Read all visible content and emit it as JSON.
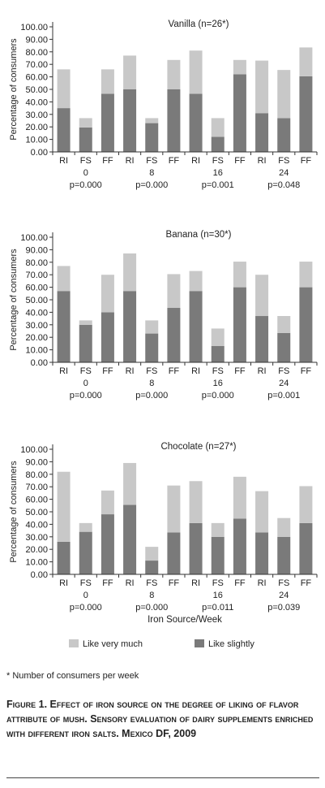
{
  "colors": {
    "like_very_much": "#c8c8c8",
    "like_slightly": "#7a7a7a",
    "axis": "#333333"
  },
  "chart_data": [
    {
      "type": "bar",
      "stacked": true,
      "title": "Vanilla (n=26*)",
      "ylabel": "Percentage of consumers",
      "xlabel": "",
      "ylim": [
        0,
        100
      ],
      "yticks": [
        "0.00",
        "10.00",
        "20.00",
        "30.00",
        "40.00",
        "50.00",
        "60.00",
        "70.00",
        "80.00",
        "90.00",
        "100.00"
      ],
      "categories": [
        "RI",
        "FS",
        "FF",
        "RI",
        "FS",
        "FF",
        "RI",
        "FS",
        "FF",
        "RI",
        "FS",
        "FF"
      ],
      "weeks": [
        "0",
        "8",
        "16",
        "24"
      ],
      "pvalues": [
        "p=0.000",
        "p=0.000",
        "p=0.001",
        "p=0.048"
      ],
      "series": [
        {
          "name": "Like slightly",
          "values": [
            35,
            19.5,
            46.5,
            50,
            23,
            50,
            46.5,
            12,
            62,
            31,
            27,
            60.5
          ]
        },
        {
          "name": "Like very much",
          "values": [
            31,
            7.5,
            19.5,
            27,
            4,
            23.5,
            34.5,
            15,
            11.5,
            42,
            38.5,
            23
          ]
        }
      ]
    },
    {
      "type": "bar",
      "stacked": true,
      "title": "Banana (n=30*)",
      "ylabel": "Percentage of consumers",
      "xlabel": "",
      "ylim": [
        0,
        100
      ],
      "yticks": [
        "0.00",
        "10.00",
        "20.00",
        "30.00",
        "40.00",
        "50.00",
        "60.00",
        "70.00",
        "80.00",
        "90.00",
        "100.00"
      ],
      "categories": [
        "RI",
        "FS",
        "FF",
        "RI",
        "FS",
        "FF",
        "RI",
        "FS",
        "FF",
        "RI",
        "FS",
        "FF"
      ],
      "weeks": [
        "0",
        "8",
        "16",
        "24"
      ],
      "pvalues": [
        "p=0.000",
        "p=0.000",
        "p=0.000",
        "p=0.001"
      ],
      "series": [
        {
          "name": "Like slightly",
          "values": [
            57,
            30,
            40,
            57,
            23,
            43.5,
            57,
            13,
            60,
            37,
            23.5,
            60
          ]
        },
        {
          "name": "Like very much",
          "values": [
            20,
            3.5,
            30,
            30,
            10.5,
            27,
            16,
            14,
            20.5,
            33,
            13.5,
            20.5
          ]
        }
      ]
    },
    {
      "type": "bar",
      "stacked": true,
      "title": "Chocolate (n=27*)",
      "ylabel": "Percentage of consumers",
      "xlabel": "Iron Source/Week",
      "ylim": [
        0,
        100
      ],
      "yticks": [
        "0.00",
        "10.00",
        "20.00",
        "30.00",
        "40.00",
        "50.00",
        "60.00",
        "70.00",
        "80.00",
        "90.00",
        "100.00"
      ],
      "categories": [
        "RI",
        "FS",
        "FF",
        "RI",
        "FS",
        "FF",
        "RI",
        "FS",
        "FF",
        "RI",
        "FS",
        "FF"
      ],
      "weeks": [
        "0",
        "8",
        "16",
        "24"
      ],
      "pvalues": [
        "p=0.000",
        "p=0.000",
        "p=0.011",
        "p=0.039"
      ],
      "series": [
        {
          "name": "Like slightly",
          "values": [
            26,
            34,
            48,
            55.5,
            11,
            33.5,
            41,
            30,
            44.5,
            33.5,
            30,
            41
          ]
        },
        {
          "name": "Like very much",
          "values": [
            56,
            7,
            19,
            33.5,
            11,
            37.5,
            33.5,
            11,
            33.5,
            33,
            15,
            29.5
          ]
        }
      ]
    }
  ],
  "legend": [
    {
      "label": "Like very much",
      "key": "like_very_much"
    },
    {
      "label": "Like slightly",
      "key": "like_slightly"
    }
  ],
  "footnote": "* Number of consumers per week",
  "caption": "Figure 1. Effect of iron source on the degree of liking of flavor attribute of mush. Sensory evaluation of dairy supplements enriched with different iron salts. Mexico DF, 2009"
}
